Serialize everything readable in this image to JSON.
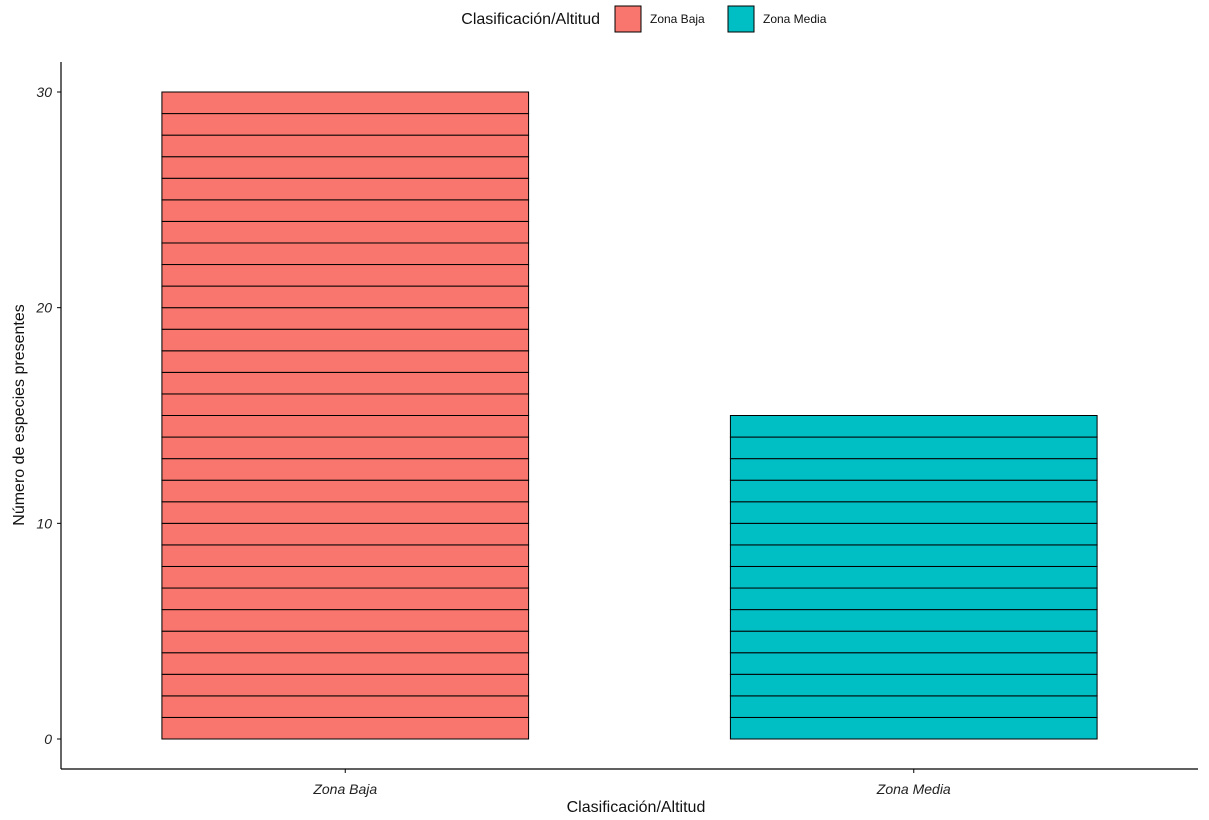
{
  "chart_data": {
    "type": "bar",
    "categories": [
      "Zona Baja",
      "Zona Media"
    ],
    "values": [
      30,
      15
    ],
    "xlabel": "Clasificación/Altitud",
    "ylabel": "Número de especies presentes",
    "ylim": [
      0,
      30
    ],
    "yticks": [
      "0",
      "10",
      "20",
      "30"
    ],
    "colors": [
      "#F8766D",
      "#00BFC4"
    ],
    "legend": {
      "title": "Clasificación/Altitud",
      "position": "top",
      "entries": [
        "Zona Baja",
        "Zona Media"
      ]
    },
    "grid": false,
    "bar_outline_color": "#000000"
  }
}
